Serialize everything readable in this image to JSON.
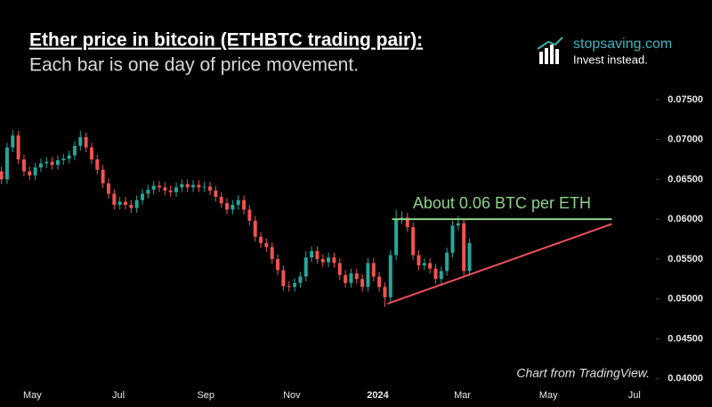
{
  "chart_data": {
    "type": "candlestick",
    "title": "Ether price in bitcoin (ETHBTC trading pair):",
    "subtitle": "Each bar is one day of price movement.",
    "brand": "stopsaving.com",
    "brand_tagline": "Invest instead.",
    "source": "Chart from TradingView.",
    "up_color": "#26a69a",
    "down_color": "#ef5350",
    "xlim": [
      -23,
      441
    ],
    "xticks": [
      {
        "value": 0,
        "label": "May"
      },
      {
        "value": 61,
        "label": "Jul"
      },
      {
        "value": 123,
        "label": "Sep"
      },
      {
        "value": 184,
        "label": "Nov"
      },
      {
        "value": 245,
        "label": "2024"
      },
      {
        "value": 305,
        "label": "Mar"
      },
      {
        "value": 366,
        "label": "May"
      },
      {
        "value": 427,
        "label": "Jul"
      }
    ],
    "ylim": [
      0.038,
      0.077
    ],
    "yticks": [
      {
        "value": 0.04,
        "label": "0.04000"
      },
      {
        "value": 0.045,
        "label": "0.04500"
      },
      {
        "value": 0.05,
        "label": "0.05000"
      },
      {
        "value": 0.055,
        "label": "0.05500"
      },
      {
        "value": 0.06,
        "label": "0.06000"
      },
      {
        "value": 0.065,
        "label": "0.06500"
      },
      {
        "value": 0.07,
        "label": "0.07000"
      },
      {
        "value": 0.075,
        "label": "0.07500"
      }
    ],
    "x": [
      -22,
      -18,
      -14,
      -10,
      -6,
      -2,
      2,
      6,
      10,
      14,
      18,
      22,
      26,
      30,
      34,
      38,
      42,
      46,
      50,
      54,
      58,
      62,
      66,
      70,
      74,
      78,
      82,
      86,
      90,
      94,
      98,
      102,
      106,
      110,
      114,
      118,
      122,
      126,
      130,
      134,
      138,
      142,
      146,
      150,
      154,
      158,
      162,
      166,
      170,
      174,
      178,
      182,
      186,
      190,
      194,
      198,
      202,
      206,
      210,
      214,
      218,
      222,
      226,
      230,
      234,
      238,
      242,
      246,
      250,
      254,
      258,
      262,
      266,
      270,
      274,
      278,
      282,
      286,
      290,
      294,
      298,
      302,
      306,
      310
    ],
    "open": [
      0.066,
      0.065,
      0.069,
      0.0705,
      0.0675,
      0.066,
      0.0655,
      0.0665,
      0.067,
      0.0672,
      0.0668,
      0.0674,
      0.0676,
      0.068,
      0.0692,
      0.0703,
      0.069,
      0.0675,
      0.0662,
      0.0645,
      0.0632,
      0.0618,
      0.0622,
      0.0618,
      0.0614,
      0.0624,
      0.0632,
      0.0637,
      0.0642,
      0.064,
      0.0636,
      0.0634,
      0.064,
      0.0644,
      0.064,
      0.0643,
      0.064,
      0.0641,
      0.0636,
      0.0628,
      0.062,
      0.0612,
      0.0618,
      0.0624,
      0.0612,
      0.0598,
      0.0578,
      0.057,
      0.0565,
      0.055,
      0.0536,
      0.0516,
      0.0515,
      0.052,
      0.0528,
      0.0552,
      0.056,
      0.055,
      0.0546,
      0.0552,
      0.0545,
      0.053,
      0.052,
      0.0532,
      0.0525,
      0.0515,
      0.0545,
      0.0528,
      0.0515,
      0.0502,
      0.0555,
      0.06,
      0.0602,
      0.059,
      0.0555,
      0.0542,
      0.0545,
      0.0538,
      0.0525,
      0.0535,
      0.0558,
      0.0592,
      0.0595,
      0.0535
    ],
    "high": [
      0.0666,
      0.0696,
      0.0712,
      0.0711,
      0.0681,
      0.0666,
      0.0671,
      0.0676,
      0.0678,
      0.0678,
      0.068,
      0.0682,
      0.0686,
      0.0698,
      0.0711,
      0.0709,
      0.0696,
      0.0681,
      0.0668,
      0.0651,
      0.0638,
      0.0628,
      0.0628,
      0.0624,
      0.063,
      0.0638,
      0.0643,
      0.0648,
      0.0648,
      0.0646,
      0.0642,
      0.0646,
      0.065,
      0.065,
      0.0649,
      0.0649,
      0.0647,
      0.0647,
      0.0642,
      0.0634,
      0.0626,
      0.0624,
      0.063,
      0.063,
      0.0618,
      0.0604,
      0.0584,
      0.0576,
      0.0571,
      0.0556,
      0.0542,
      0.0522,
      0.0526,
      0.0534,
      0.056,
      0.0566,
      0.0566,
      0.0556,
      0.0558,
      0.0558,
      0.0551,
      0.0536,
      0.0538,
      0.0538,
      0.0531,
      0.0551,
      0.0551,
      0.0534,
      0.0521,
      0.0561,
      0.0612,
      0.061,
      0.0608,
      0.0596,
      0.0561,
      0.0551,
      0.0551,
      0.0544,
      0.0541,
      0.0564,
      0.0598,
      0.0604,
      0.0601,
      0.0576
    ],
    "low": [
      0.0644,
      0.0644,
      0.0684,
      0.0669,
      0.0654,
      0.0649,
      0.0649,
      0.0659,
      0.0664,
      0.0662,
      0.0662,
      0.0668,
      0.067,
      0.0674,
      0.0686,
      0.0684,
      0.0669,
      0.0656,
      0.0639,
      0.0626,
      0.0612,
      0.0612,
      0.0612,
      0.0608,
      0.0608,
      0.0618,
      0.0626,
      0.0631,
      0.0634,
      0.063,
      0.0628,
      0.0628,
      0.0634,
      0.0634,
      0.0634,
      0.0634,
      0.0634,
      0.063,
      0.0622,
      0.0614,
      0.0606,
      0.0606,
      0.0612,
      0.0606,
      0.0592,
      0.0572,
      0.0564,
      0.0559,
      0.0544,
      0.053,
      0.051,
      0.0509,
      0.0509,
      0.0514,
      0.0522,
      0.0546,
      0.0544,
      0.054,
      0.054,
      0.0539,
      0.0524,
      0.0514,
      0.0514,
      0.0519,
      0.0509,
      0.0509,
      0.0522,
      0.0509,
      0.049,
      0.0496,
      0.0549,
      0.0594,
      0.0584,
      0.0549,
      0.0536,
      0.0536,
      0.0532,
      0.0519,
      0.0519,
      0.0529,
      0.0552,
      0.0586,
      0.0529,
      0.0529
    ],
    "close": [
      0.065,
      0.069,
      0.0705,
      0.0675,
      0.066,
      0.0655,
      0.0665,
      0.067,
      0.0672,
      0.0668,
      0.0674,
      0.0676,
      0.068,
      0.0692,
      0.0703,
      0.069,
      0.0675,
      0.0662,
      0.0645,
      0.0632,
      0.0618,
      0.0622,
      0.0618,
      0.0614,
      0.0624,
      0.0632,
      0.0637,
      0.0642,
      0.064,
      0.0636,
      0.0634,
      0.064,
      0.0644,
      0.064,
      0.0643,
      0.064,
      0.0641,
      0.0636,
      0.0628,
      0.062,
      0.0612,
      0.0618,
      0.0624,
      0.0612,
      0.0598,
      0.0578,
      0.057,
      0.0565,
      0.055,
      0.0536,
      0.0516,
      0.0515,
      0.052,
      0.0528,
      0.0552,
      0.056,
      0.055,
      0.0546,
      0.0552,
      0.0545,
      0.053,
      0.052,
      0.0532,
      0.0525,
      0.0515,
      0.0545,
      0.0528,
      0.0515,
      0.0502,
      0.0555,
      0.06,
      0.0602,
      0.059,
      0.0555,
      0.0542,
      0.0545,
      0.0538,
      0.0525,
      0.0535,
      0.0558,
      0.0592,
      0.0595,
      0.0535,
      0.057
    ],
    "annotations": [
      {
        "text": "About 0.06 BTC per ETH",
        "color": "#8fd18a",
        "x": [
          255,
          411
        ],
        "y": [
          0.06,
          0.06
        ]
      },
      {
        "color": "#f0505a",
        "x": [
          252,
          411
        ],
        "y": [
          0.0494,
          0.0594
        ]
      }
    ]
  }
}
